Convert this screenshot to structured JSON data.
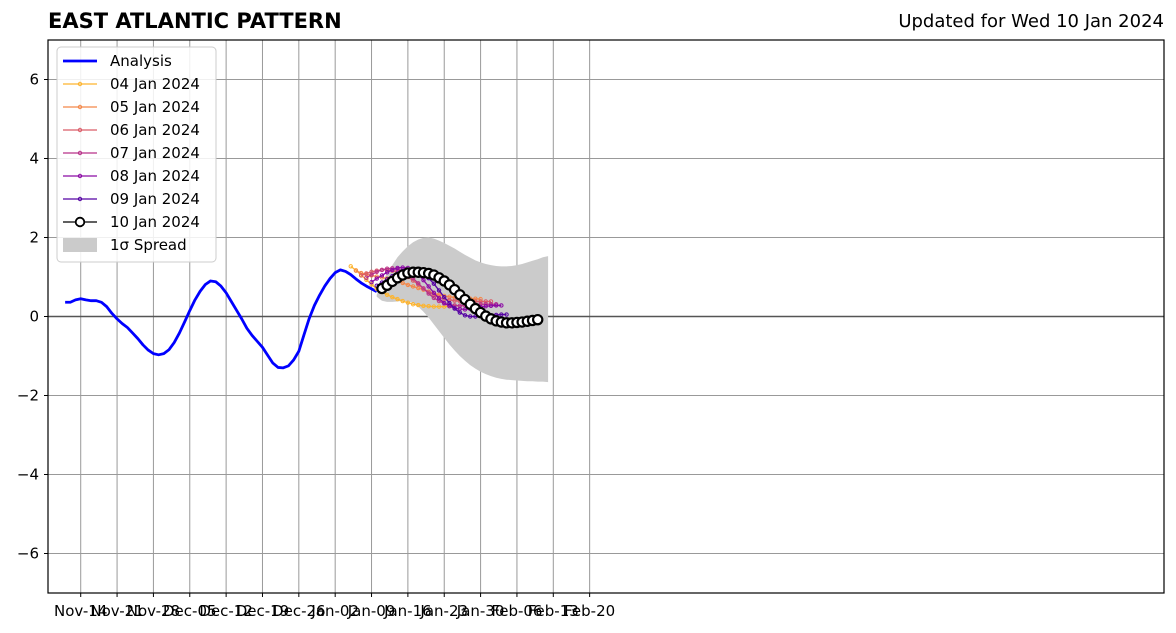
{
  "header": {
    "title": "EAST ATLANTIC PATTERN",
    "updated": "Updated for Wed 10 Jan 2024"
  },
  "colors": {
    "analysis": "#0000ff",
    "spread": "#cbcbcb",
    "grid": "#999999",
    "zero_line": "#555555"
  },
  "chart_data": {
    "type": "line",
    "title": "EAST ATLANTIC PATTERN",
    "xlabel": "",
    "ylabel": "",
    "x_unit": "days relative to 2023-11-14",
    "xlim": [
      -0.9,
      29.8
    ],
    "ylim": [
      -7,
      7
    ],
    "grid": true,
    "legend_position": "upper-left",
    "x_ticks": [
      "Nov-14",
      "Nov-21",
      "Nov-28",
      "Dec-05",
      "Dec-12",
      "Dec-19",
      "Dec-26",
      "Jan-02",
      "Jan-09",
      "Jan-16",
      "Jan-23",
      "Jan-30",
      "Feb-06",
      "Feb-13",
      "Feb-20"
    ],
    "y_ticks": [
      -6,
      -4,
      -2,
      0,
      2,
      4,
      6
    ],
    "y_tick_labels": [
      "−6",
      "−4",
      "−2",
      "0",
      "2",
      "4",
      "6"
    ],
    "analysis": {
      "name": "Analysis",
      "x": [
        "2023-11-11",
        "2023-11-12",
        "2023-11-13",
        "2023-11-14",
        "2023-11-15",
        "2023-11-16",
        "2023-11-17",
        "2023-11-18",
        "2023-11-19",
        "2023-11-20",
        "2023-11-21",
        "2023-11-22",
        "2023-11-23",
        "2023-11-24",
        "2023-11-25",
        "2023-11-26",
        "2023-11-27",
        "2023-11-28",
        "2023-11-29",
        "2023-11-30",
        "2023-12-01",
        "2023-12-02",
        "2023-12-03",
        "2023-12-04",
        "2023-12-05",
        "2023-12-06",
        "2023-12-07",
        "2023-12-08",
        "2023-12-09",
        "2023-12-10",
        "2023-12-11",
        "2023-12-12",
        "2023-12-13",
        "2023-12-14",
        "2023-12-15",
        "2023-12-16",
        "2023-12-17",
        "2023-12-18",
        "2023-12-19",
        "2023-12-20",
        "2023-12-21",
        "2023-12-22",
        "2023-12-23",
        "2023-12-24",
        "2023-12-25",
        "2023-12-26",
        "2023-12-27",
        "2023-12-28",
        "2023-12-29",
        "2023-12-30",
        "2023-12-31",
        "2024-01-01",
        "2024-01-02",
        "2024-01-03",
        "2024-01-04",
        "2024-01-05",
        "2024-01-06",
        "2024-01-07",
        "2024-01-08",
        "2024-01-09",
        "2024-01-10"
      ],
      "y": [
        0.36,
        0.36,
        0.42,
        0.45,
        0.42,
        0.4,
        0.4,
        0.36,
        0.25,
        0.08,
        -0.06,
        -0.18,
        -0.28,
        -0.42,
        -0.56,
        -0.72,
        -0.85,
        -0.94,
        -0.97,
        -0.94,
        -0.84,
        -0.66,
        -0.42,
        -0.14,
        0.15,
        0.42,
        0.64,
        0.81,
        0.9,
        0.88,
        0.77,
        0.6,
        0.38,
        0.16,
        -0.06,
        -0.3,
        -0.48,
        -0.63,
        -0.78,
        -0.98,
        -1.18,
        -1.29,
        -1.3,
        -1.25,
        -1.1,
        -0.88,
        -0.46,
        -0.05,
        0.28,
        0.54,
        0.77,
        0.96,
        1.11,
        1.18,
        1.14,
        1.06,
        0.95,
        0.85,
        0.77,
        0.7,
        0.63
      ]
    },
    "forecasts": [
      {
        "name": "04 Jan 2024",
        "color": "#fdb42f",
        "start": "2024-01-05",
        "y": [
          1.27,
          1.17,
          1.05,
          0.93,
          0.81,
          0.7,
          0.62,
          0.55,
          0.49,
          0.44,
          0.39,
          0.35,
          0.31,
          0.29,
          0.27,
          0.26,
          0.25,
          0.25,
          0.25,
          0.26,
          0.27
        ]
      },
      {
        "name": "05 Jan 2024",
        "color": "#f48849",
        "start": "2024-01-06",
        "y": [
          1.16,
          1.1,
          1.07,
          1.04,
          1.01,
          0.99,
          0.96,
          0.93,
          0.9,
          0.85,
          0.8,
          0.76,
          0.72,
          0.68,
          0.63,
          0.59,
          0.55,
          0.52,
          0.5,
          0.48,
          0.47,
          0.46,
          0.45,
          0.45,
          0.44
        ]
      },
      {
        "name": "06 Jan 2024",
        "color": "#db5c68",
        "start": "2024-01-07",
        "y": [
          1.04,
          1.09,
          1.13,
          1.16,
          1.18,
          1.18,
          1.16,
          1.13,
          1.07,
          1.0,
          0.91,
          0.81,
          0.71,
          0.62,
          0.54,
          0.48,
          0.44,
          0.42,
          0.4,
          0.39,
          0.38,
          0.38,
          0.38,
          0.38,
          0.38,
          0.38
        ]
      },
      {
        "name": "07 Jan 2024",
        "color": "#b83289",
        "start": "2024-01-08",
        "y": [
          0.98,
          1.06,
          1.13,
          1.18,
          1.21,
          1.22,
          1.2,
          1.16,
          1.08,
          0.97,
          0.84,
          0.71,
          0.58,
          0.47,
          0.39,
          0.33,
          0.3,
          0.28,
          0.27,
          0.28,
          0.29,
          0.3,
          0.31,
          0.31,
          0.31,
          0.31
        ]
      },
      {
        "name": "08 Jan 2024",
        "color": "#8b0aa5",
        "start": "2024-01-09",
        "y": [
          0.87,
          0.96,
          1.04,
          1.12,
          1.18,
          1.23,
          1.24,
          1.23,
          1.17,
          1.06,
          0.92,
          0.76,
          0.6,
          0.46,
          0.34,
          0.26,
          0.21,
          0.19,
          0.18,
          0.19,
          0.21,
          0.24,
          0.26,
          0.27,
          0.28,
          0.28
        ]
      },
      {
        "name": "09 Jan 2024",
        "color": "#5402a3",
        "start": "2024-01-10",
        "y": [
          0.78,
          0.86,
          0.94,
          1.02,
          1.09,
          1.15,
          1.18,
          1.18,
          1.15,
          1.08,
          0.97,
          0.83,
          0.66,
          0.49,
          0.34,
          0.2,
          0.1,
          0.03,
          0.0,
          0.0,
          0.01,
          0.02,
          0.03,
          0.04,
          0.05,
          0.05
        ]
      },
      {
        "name": "10 Jan 2024",
        "color": "#000000",
        "start": "2024-01-11",
        "y": [
          0.71,
          0.79,
          0.89,
          0.98,
          1.05,
          1.1,
          1.12,
          1.12,
          1.11,
          1.09,
          1.05,
          0.98,
          0.9,
          0.8,
          0.68,
          0.55,
          0.43,
          0.31,
          0.2,
          0.1,
          0.01,
          -0.06,
          -0.11,
          -0.14,
          -0.16,
          -0.16,
          -0.15,
          -0.14,
          -0.12,
          -0.1,
          -0.08
        ]
      }
    ],
    "spread": {
      "name": "1σ Spread",
      "start": "2024-01-10",
      "upper": [
        0.55,
        0.85,
        1.1,
        1.3,
        1.5,
        1.65,
        1.78,
        1.88,
        1.95,
        1.99,
        2.0,
        1.97,
        1.92,
        1.86,
        1.79,
        1.72,
        1.64,
        1.56,
        1.49,
        1.42,
        1.37,
        1.33,
        1.3,
        1.28,
        1.27,
        1.27,
        1.28,
        1.3,
        1.33,
        1.37,
        1.41,
        1.45,
        1.5,
        1.53
      ],
      "lower": [
        0.5,
        0.4,
        0.37,
        0.37,
        0.38,
        0.4,
        0.39,
        0.34,
        0.25,
        0.12,
        -0.03,
        -0.2,
        -0.37,
        -0.54,
        -0.71,
        -0.86,
        -1.0,
        -1.12,
        -1.23,
        -1.32,
        -1.4,
        -1.46,
        -1.51,
        -1.55,
        -1.58,
        -1.6,
        -1.61,
        -1.62,
        -1.63,
        -1.64,
        -1.64,
        -1.65,
        -1.65,
        -1.66
      ]
    },
    "legend": [
      "Analysis",
      "04 Jan 2024",
      "05 Jan 2024",
      "06 Jan 2024",
      "07 Jan 2024",
      "08 Jan 2024",
      "09 Jan 2024",
      "10 Jan 2024",
      "1σ Spread"
    ]
  }
}
